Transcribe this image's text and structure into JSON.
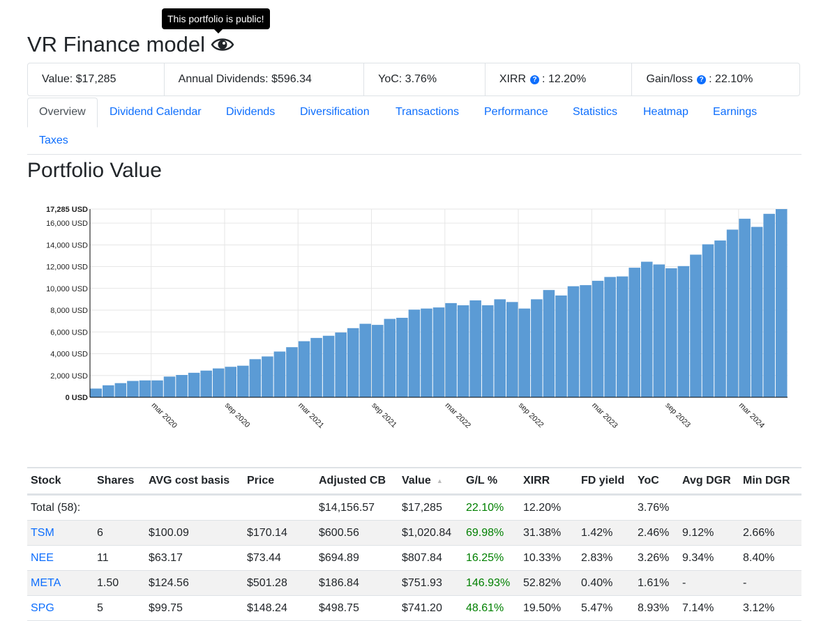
{
  "tooltip": "This portfolio is public!",
  "title": "VR Finance model",
  "summary": {
    "value": "Value: $17,285",
    "annual_dividends": "Annual Dividends: $596.34",
    "yoc": "YoC: 3.76%",
    "xirr_label": "XIRR",
    "xirr_value": ": 12.20%",
    "gainloss_label": "Gain/loss",
    "gainloss_value": ": 22.10%"
  },
  "tabs": [
    "Overview",
    "Dividend Calendar",
    "Dividends",
    "Diversification",
    "Transactions",
    "Performance",
    "Statistics",
    "Heatmap",
    "Earnings",
    "Taxes"
  ],
  "section_title": "Portfolio Value",
  "chart_data": {
    "type": "bar",
    "ylabel": "",
    "ylim": [
      0,
      17285
    ],
    "yticks": [
      {
        "value": 0,
        "label": "0 USD"
      },
      {
        "value": 2000,
        "label": "2,000 USD"
      },
      {
        "value": 4000,
        "label": "4,000 USD"
      },
      {
        "value": 6000,
        "label": "6,000 USD"
      },
      {
        "value": 8000,
        "label": "8,000 USD"
      },
      {
        "value": 10000,
        "label": "10,000 USD"
      },
      {
        "value": 12000,
        "label": "12,000 USD"
      },
      {
        "value": 14000,
        "label": "14,000 USD"
      },
      {
        "value": 16000,
        "label": "16,000 USD"
      },
      {
        "value": 17285,
        "label": "17,285 USD"
      }
    ],
    "xtick_labels": [
      {
        "index": 5,
        "label": "mar 2020"
      },
      {
        "index": 11,
        "label": "sep 2020"
      },
      {
        "index": 17,
        "label": "mar 2021"
      },
      {
        "index": 23,
        "label": "sep 2021"
      },
      {
        "index": 29,
        "label": "mar 2022"
      },
      {
        "index": 35,
        "label": "sep 2022"
      },
      {
        "index": 41,
        "label": "mar 2023"
      },
      {
        "index": 47,
        "label": "sep 2023"
      },
      {
        "index": 53,
        "label": "mar 2024"
      }
    ],
    "color": "#5b9bd5",
    "grid": true,
    "values": [
      800,
      1100,
      1300,
      1500,
      1550,
      1550,
      1900,
      2050,
      2250,
      2450,
      2650,
      2800,
      2900,
      3500,
      3750,
      4200,
      4600,
      5150,
      5450,
      5650,
      5950,
      6350,
      6750,
      6650,
      7200,
      7300,
      8050,
      8150,
      8250,
      8650,
      8450,
      8900,
      8450,
      9000,
      8750,
      8150,
      9000,
      9850,
      9350,
      10200,
      10300,
      10700,
      11050,
      11100,
      11900,
      12450,
      12200,
      11850,
      12050,
      13100,
      14050,
      14400,
      15400,
      16400,
      15650,
      16850,
      17285
    ]
  },
  "table": {
    "columns": [
      "Stock",
      "Shares",
      "AVG cost basis",
      "Price",
      "Adjusted CB",
      "Value",
      "G/L %",
      "XIRR",
      "FD yield",
      "YoC",
      "Avg DGR",
      "Min DGR"
    ],
    "total": [
      "Total (58):",
      "",
      "",
      "",
      "$14,156.57",
      "$17,285",
      "22.10%",
      "12.20%",
      "",
      "3.76%",
      "",
      ""
    ],
    "rows": [
      [
        "TSM",
        "6",
        "$100.09",
        "$170.14",
        "$600.56",
        "$1,020.84",
        "69.98%",
        "31.38%",
        "1.42%",
        "2.46%",
        "9.12%",
        "2.66%"
      ],
      [
        "NEE",
        "11",
        "$63.17",
        "$73.44",
        "$694.89",
        "$807.84",
        "16.25%",
        "10.33%",
        "2.83%",
        "3.26%",
        "9.34%",
        "8.40%"
      ],
      [
        "META",
        "1.50",
        "$124.56",
        "$501.28",
        "$186.84",
        "$751.93",
        "146.93%",
        "52.82%",
        "0.40%",
        "1.61%",
        "-",
        "-"
      ],
      [
        "SPG",
        "5",
        "$99.75",
        "$148.24",
        "$498.75",
        "$741.20",
        "48.61%",
        "19.50%",
        "5.47%",
        "8.93%",
        "7.14%",
        "3.12%"
      ]
    ]
  }
}
